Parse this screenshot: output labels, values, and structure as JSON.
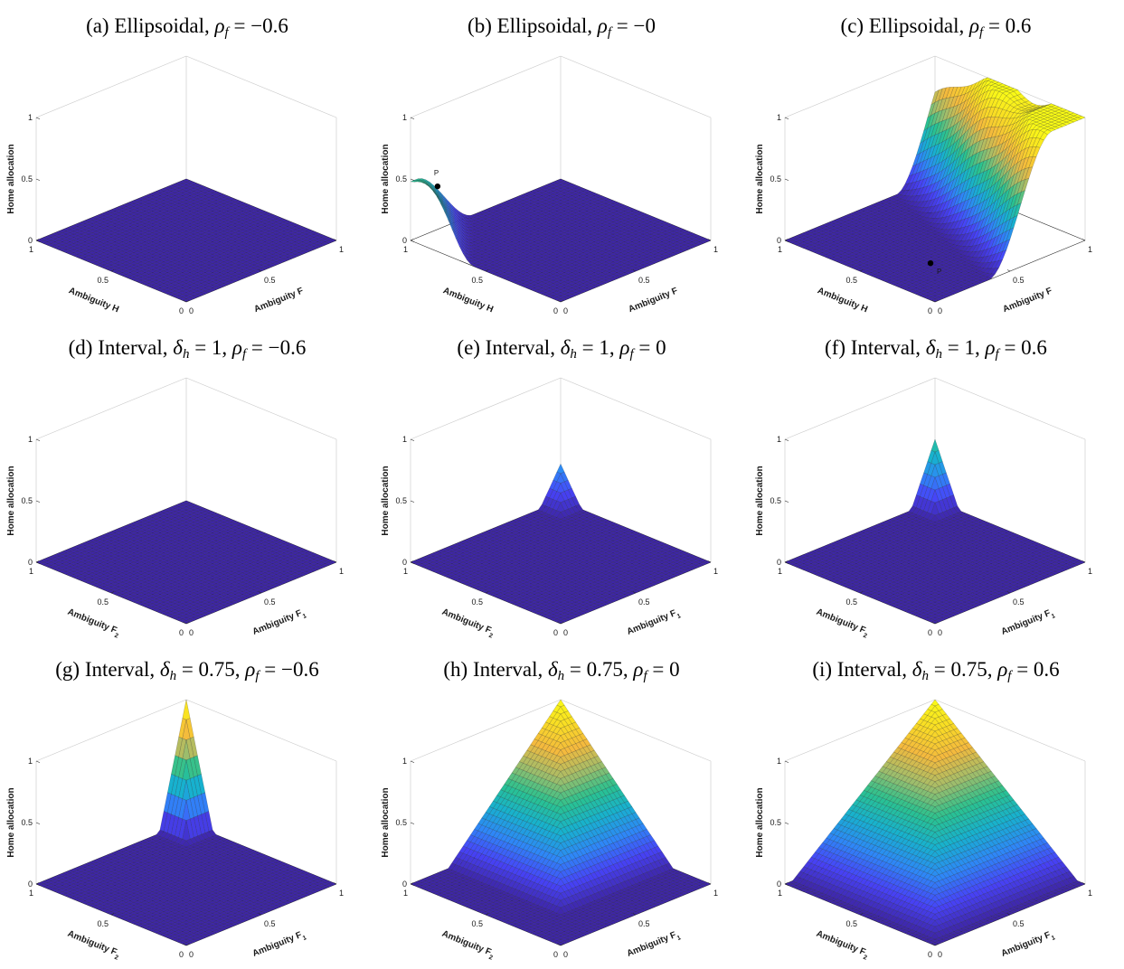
{
  "chart_data": [
    {
      "id": "a",
      "type": "surface",
      "title": "(a) Ellipsoidal, ρf = −0.6",
      "letter": "(a)",
      "family": "Ellipsoidal",
      "params": [
        {
          "sym": "ρ",
          "sub": "f",
          "val": "−0.6"
        }
      ],
      "zlabel": "Home allocation",
      "xlabel": "Ambiguity H",
      "xsub": "",
      "ylabel": "Ambiguity F",
      "ysub": "",
      "zticks": [
        "0",
        "0.5",
        "1"
      ],
      "xticks": [
        "0",
        "0.5",
        "1"
      ],
      "yticks": [
        "0",
        "0.5",
        "1"
      ],
      "zlim": [
        0,
        1
      ],
      "surface": "flat",
      "point": null
    },
    {
      "id": "b",
      "type": "surface",
      "title": "(b) Ellipsoidal, ρf = −0",
      "letter": "(b)",
      "family": "Ellipsoidal",
      "params": [
        {
          "sym": "ρ",
          "sub": "f",
          "val": "−0"
        }
      ],
      "zlabel": "Home allocation",
      "xlabel": "Ambiguity H",
      "xsub": "",
      "ylabel": "Ambiguity F",
      "ysub": "",
      "zticks": [
        "0",
        "0.5",
        "1"
      ],
      "xticks": [
        "0",
        "0.5",
        "1"
      ],
      "yticks": [
        "0",
        "0.5",
        "1"
      ],
      "zlim": [
        0,
        1
      ],
      "surface": "ridge_b",
      "point": {
        "label": "P",
        "x": 0.9,
        "y": 0.08,
        "z": 0.45
      }
    },
    {
      "id": "c",
      "type": "surface",
      "title": "(c) Ellipsoidal, ρf = 0.6",
      "letter": "(c)",
      "family": "Ellipsoidal",
      "params": [
        {
          "sym": "ρ",
          "sub": "f",
          "val": "0.6"
        }
      ],
      "zlabel": "Home allocation",
      "xlabel": "Ambiguity H",
      "xsub": "",
      "ylabel": "Ambiguity F",
      "ysub": "",
      "zticks": [
        "0",
        "0.5",
        "1"
      ],
      "xticks": [
        "0",
        "0.5",
        "1"
      ],
      "yticks": [
        "0",
        "0.5",
        "1"
      ],
      "zlim": [
        0,
        1
      ],
      "surface": "ridge_c",
      "point": {
        "label": "P",
        "x": 0.33,
        "y": 0.3,
        "z": 0
      }
    },
    {
      "id": "d",
      "type": "surface",
      "title": "(d) Interval, δh = 1, ρf = −0.6",
      "letter": "(d)",
      "family": "Interval",
      "params": [
        {
          "sym": "δ",
          "sub": "h",
          "val": "1"
        },
        {
          "sym": "ρ",
          "sub": "f",
          "val": "−0.6"
        }
      ],
      "zlabel": "Home allocation",
      "xlabel": "Ambiguity F",
      "xsub": "2",
      "ylabel": "Ambiguity F",
      "ysub": "1",
      "zticks": [
        "0",
        "0.5",
        "1"
      ],
      "xticks": [
        "0",
        "0.5",
        "1"
      ],
      "yticks": [
        "0",
        "0.5",
        "1"
      ],
      "zlim": [
        0,
        1
      ],
      "surface": "flat",
      "point": null
    },
    {
      "id": "e",
      "type": "surface",
      "title": "(e) Interval, δh = 1, ρf = 0",
      "letter": "(e)",
      "family": "Interval",
      "params": [
        {
          "sym": "δ",
          "sub": "h",
          "val": "1"
        },
        {
          "sym": "ρ",
          "sub": "f",
          "val": "0"
        }
      ],
      "zlabel": "Home allocation",
      "xlabel": "Ambiguity F",
      "xsub": "2",
      "ylabel": "Ambiguity F",
      "ysub": "1",
      "zticks": [
        "0",
        "0.5",
        "1"
      ],
      "xticks": [
        "0",
        "0.5",
        "1"
      ],
      "yticks": [
        "0",
        "0.5",
        "1"
      ],
      "zlim": [
        0,
        1
      ],
      "surface": "pyramid",
      "peak": 0.3,
      "radius": 0.14,
      "point": null
    },
    {
      "id": "f",
      "type": "surface",
      "title": "(f) Interval, δh = 1, ρf = 0.6",
      "letter": "(f)",
      "family": "Interval",
      "params": [
        {
          "sym": "δ",
          "sub": "h",
          "val": "1"
        },
        {
          "sym": "ρ",
          "sub": "f",
          "val": "0.6"
        }
      ],
      "zlabel": "Home allocation",
      "xlabel": "Ambiguity F",
      "xsub": "2",
      "ylabel": "Ambiguity F",
      "ysub": "1",
      "zticks": [
        "0",
        "0.5",
        "1"
      ],
      "xticks": [
        "0",
        "0.5",
        "1"
      ],
      "yticks": [
        "0",
        "0.5",
        "1"
      ],
      "zlim": [
        0,
        1
      ],
      "surface": "pyramid",
      "peak": 0.5,
      "radius": 0.16,
      "point": null
    },
    {
      "id": "g",
      "type": "surface",
      "title": "(g) Interval, δh = 0.75, ρf = −0.6",
      "letter": "(g)",
      "family": "Interval",
      "params": [
        {
          "sym": "δ",
          "sub": "h",
          "val": "0.75"
        },
        {
          "sym": "ρ",
          "sub": "f",
          "val": "−0.6"
        }
      ],
      "zlabel": "Home allocation",
      "xlabel": "Ambiguity F",
      "xsub": "2",
      "ylabel": "Ambiguity F",
      "ysub": "1",
      "zticks": [
        "0",
        "0.5",
        "1"
      ],
      "xticks": [
        "0",
        "0.5",
        "1"
      ],
      "yticks": [
        "0",
        "0.5",
        "1"
      ],
      "zlim": [
        0,
        1
      ],
      "surface": "pyramid",
      "peak": 1.0,
      "radius": 0.18,
      "point": null
    },
    {
      "id": "h",
      "type": "surface",
      "title": "(h) Interval, δh = 0.75, ρf = 0",
      "letter": "(h)",
      "family": "Interval",
      "params": [
        {
          "sym": "δ",
          "sub": "h",
          "val": "0.75"
        },
        {
          "sym": "ρ",
          "sub": "f",
          "val": "0"
        }
      ],
      "zlabel": "Home allocation",
      "xlabel": "Ambiguity F",
      "xsub": "2",
      "ylabel": "Ambiguity F",
      "ysub": "1",
      "zticks": [
        "0",
        "0.5",
        "1"
      ],
      "xticks": [
        "0",
        "0.5",
        "1"
      ],
      "yticks": [
        "0",
        "0.5",
        "1"
      ],
      "zlim": [
        0,
        1
      ],
      "surface": "pyramid",
      "peak": 1.0,
      "radius": 0.75,
      "point": null
    },
    {
      "id": "i",
      "type": "surface",
      "title": "(i) Interval, δh = 0.75, ρf = 0.6",
      "letter": "(i)",
      "family": "Interval",
      "params": [
        {
          "sym": "δ",
          "sub": "h",
          "val": "0.75"
        },
        {
          "sym": "ρ",
          "sub": "f",
          "val": "0.6"
        }
      ],
      "zlabel": "Home allocation",
      "xlabel": "Ambiguity F",
      "xsub": "2",
      "ylabel": "Ambiguity F",
      "ysub": "1",
      "zticks": [
        "0",
        "0.5",
        "1"
      ],
      "xticks": [
        "0",
        "0.5",
        "1"
      ],
      "yticks": [
        "0",
        "0.5",
        "1"
      ],
      "zlim": [
        0,
        1
      ],
      "surface": "pyramid",
      "peak": 1.0,
      "radius": 0.95,
      "point": null
    }
  ],
  "colormap": [
    "#3e26a8",
    "#4743f8",
    "#2e87f7",
    "#17b1cf",
    "#2ac28f",
    "#a3bd6a",
    "#f4ba3d",
    "#f9dd24",
    "#f9fb15"
  ]
}
